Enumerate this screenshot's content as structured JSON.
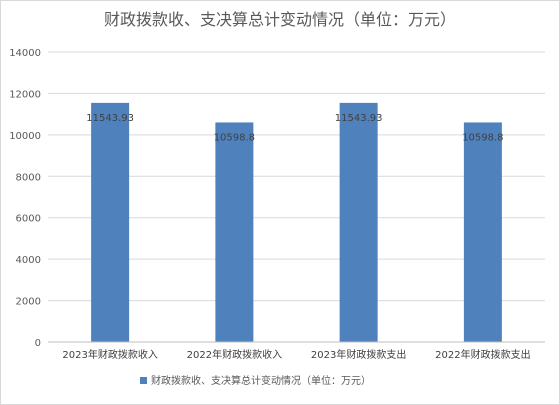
{
  "chart_data": {
    "type": "bar",
    "title": "财政拨款收、支决算总计变动情况（单位：万元）",
    "categories": [
      "2023年财政拨款收入",
      "2022年财政拨款收入",
      "2023年财政拨款支出",
      "2022年财政拨款支出"
    ],
    "series": [
      {
        "name": "财政拨款收、支决算总计变动情况（单位：万元）",
        "values": [
          11543.93,
          10598.8,
          11543.93,
          10598.8
        ],
        "labels": [
          "11543.93",
          "10598.8",
          "11543.93",
          "10598.8"
        ],
        "color": "#4f81bd"
      }
    ],
    "ylim": [
      0,
      14000
    ],
    "yticks": [
      "0",
      "2000",
      "4000",
      "6000",
      "8000",
      "10000",
      "12000",
      "14000"
    ],
    "grid": true,
    "legend": "bottom"
  }
}
